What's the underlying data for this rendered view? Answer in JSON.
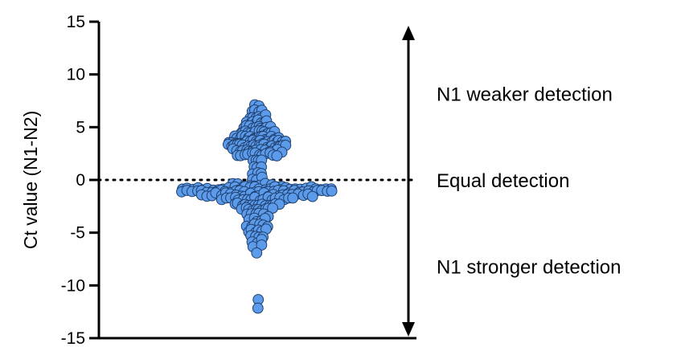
{
  "chart_data": {
    "type": "scatter",
    "ylabel": "Ct value (N1-N2)",
    "ylim": [
      -15,
      15
    ],
    "yticks": [
      15,
      10,
      5,
      0,
      -5,
      -10,
      -15
    ],
    "grid": false,
    "reference_line": {
      "y": 0,
      "style": "dotted"
    },
    "point_color": "#5b9bea",
    "point_edge_color": "#1f3f6e",
    "annotations": [
      {
        "text": "N1 weaker detection",
        "y": 8.2
      },
      {
        "text": "Equal detection",
        "y": 0
      },
      {
        "text": "N1 stronger detection",
        "y": -8.2
      }
    ],
    "distribution_bands": [
      {
        "y": 7.1,
        "halfwidth": 0.05,
        "count": 2
      },
      {
        "y": 6.5,
        "halfwidth": 0.1,
        "count": 4
      },
      {
        "y": 6.0,
        "halfwidth": 0.15,
        "count": 6
      },
      {
        "y": 5.5,
        "halfwidth": 0.2,
        "count": 8
      },
      {
        "y": 5.0,
        "halfwidth": 0.26,
        "count": 10
      },
      {
        "y": 4.5,
        "halfwidth": 0.34,
        "count": 14
      },
      {
        "y": 4.0,
        "halfwidth": 0.44,
        "count": 18
      },
      {
        "y": 3.6,
        "halfwidth": 0.55,
        "count": 22
      },
      {
        "y": 3.2,
        "halfwidth": 0.58,
        "count": 22
      },
      {
        "y": 2.8,
        "halfwidth": 0.48,
        "count": 16
      },
      {
        "y": 2.4,
        "halfwidth": 0.4,
        "count": 12
      },
      {
        "y": 1.8,
        "halfwidth": 0.1,
        "count": 4
      },
      {
        "y": 1.2,
        "halfwidth": 0.08,
        "count": 3
      },
      {
        "y": 0.6,
        "halfwidth": 0.08,
        "count": 3
      },
      {
        "y": 0.1,
        "halfwidth": 0.1,
        "count": 3
      },
      {
        "y": -0.5,
        "halfwidth": 0.5,
        "count": 10
      },
      {
        "y": -0.8,
        "halfwidth": 1.5,
        "count": 30
      },
      {
        "y": -1.1,
        "halfwidth": 1.5,
        "count": 32
      },
      {
        "y": -1.4,
        "halfwidth": 1.1,
        "count": 24
      },
      {
        "y": -1.8,
        "halfwidth": 0.7,
        "count": 18
      },
      {
        "y": -2.3,
        "halfwidth": 0.45,
        "count": 14
      },
      {
        "y": -2.8,
        "halfwidth": 0.3,
        "count": 10
      },
      {
        "y": -3.3,
        "halfwidth": 0.2,
        "count": 6
      },
      {
        "y": -3.8,
        "halfwidth": 0.15,
        "count": 5
      },
      {
        "y": -4.3,
        "halfwidth": 0.2,
        "count": 6
      },
      {
        "y": -4.8,
        "halfwidth": 0.18,
        "count": 6
      },
      {
        "y": -5.3,
        "halfwidth": 0.13,
        "count": 4
      },
      {
        "y": -5.8,
        "halfwidth": 0.1,
        "count": 3
      },
      {
        "y": -6.3,
        "halfwidth": 0.08,
        "count": 2
      },
      {
        "y": -6.8,
        "halfwidth": 0.03,
        "count": 1
      },
      {
        "y": -11.2,
        "halfwidth": 0.0,
        "count": 1
      },
      {
        "y": -12.0,
        "halfwidth": 0.0,
        "count": 1
      }
    ]
  }
}
